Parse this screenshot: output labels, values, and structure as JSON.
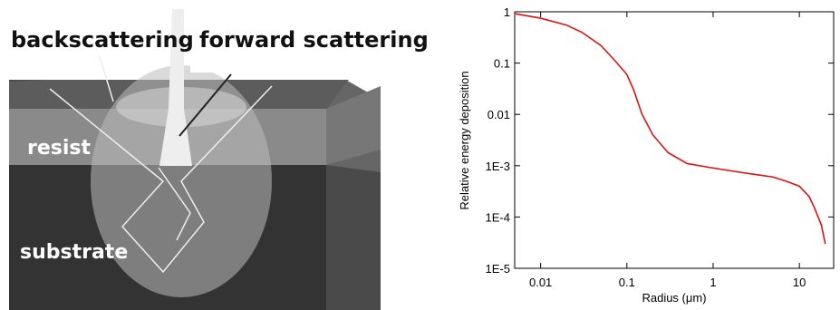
{
  "diagram": {
    "labels": [
      "backscattering",
      "forward scattering",
      "resist",
      "substrate"
    ]
  },
  "chart_data": {
    "type": "line",
    "xlabel": "Radius (μm)",
    "ylabel": "Relative energy deposition",
    "log_x": true,
    "log_y": true,
    "xlim": [
      0.005,
      25
    ],
    "ylim": [
      1e-05,
      1
    ],
    "xticks": [
      0.01,
      0.1,
      1,
      10
    ],
    "yticks": [
      1,
      0.1,
      0.01,
      {
        "value": 0.001,
        "label": "1E-3"
      },
      {
        "value": 0.0001,
        "label": "1E-4"
      },
      {
        "value": 1e-05,
        "label": "1E-5"
      }
    ],
    "x": [
      0.005,
      0.01,
      0.02,
      0.03,
      0.05,
      0.07,
      0.1,
      0.12,
      0.15,
      0.2,
      0.3,
      0.5,
      1,
      2,
      3,
      5,
      7,
      10,
      13,
      15,
      18,
      20
    ],
    "series": [
      {
        "color": "#e01010",
        "values": [
          0.92,
          0.75,
          0.55,
          0.4,
          0.22,
          0.12,
          0.06,
          0.03,
          0.01,
          0.004,
          0.0018,
          0.0011,
          0.0009,
          0.00075,
          0.00068,
          0.0006,
          0.0005,
          0.0004,
          0.00025,
          0.00015,
          7e-05,
          3e-05
        ]
      }
    ]
  }
}
